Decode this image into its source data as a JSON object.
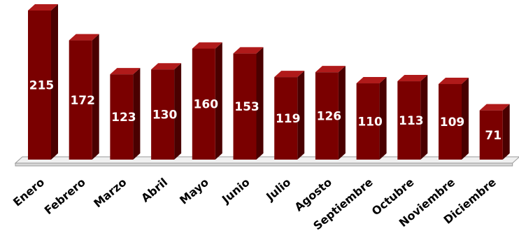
{
  "chart_data": {
    "type": "bar",
    "categories": [
      "Enero",
      "Febrero",
      "Marzo",
      "Abril",
      "Mayo",
      "Junio",
      "Julio",
      "Agosto",
      "Septiembre",
      "Octubre",
      "Noviembre",
      "Diciembre"
    ],
    "values": [
      215,
      172,
      123,
      130,
      160,
      153,
      119,
      126,
      110,
      113,
      109,
      71
    ],
    "value_labels": [
      "215",
      "172",
      "123",
      "130",
      "160",
      "153",
      "119",
      "126",
      "110",
      "113",
      "109",
      "71"
    ],
    "title": "",
    "xlabel": "",
    "ylabel": "",
    "ylim": [
      0,
      215
    ],
    "grid": false,
    "legend": "none",
    "style": "3d",
    "colors": {
      "bar_front": "#7a0000",
      "bar_side": "#4a0000",
      "bar_top": "#b01a1a",
      "floor": "#f0f0f0",
      "floor_stroke": "#9a9a9a",
      "value_label": "#ffffff",
      "category_label": "#000000"
    }
  }
}
